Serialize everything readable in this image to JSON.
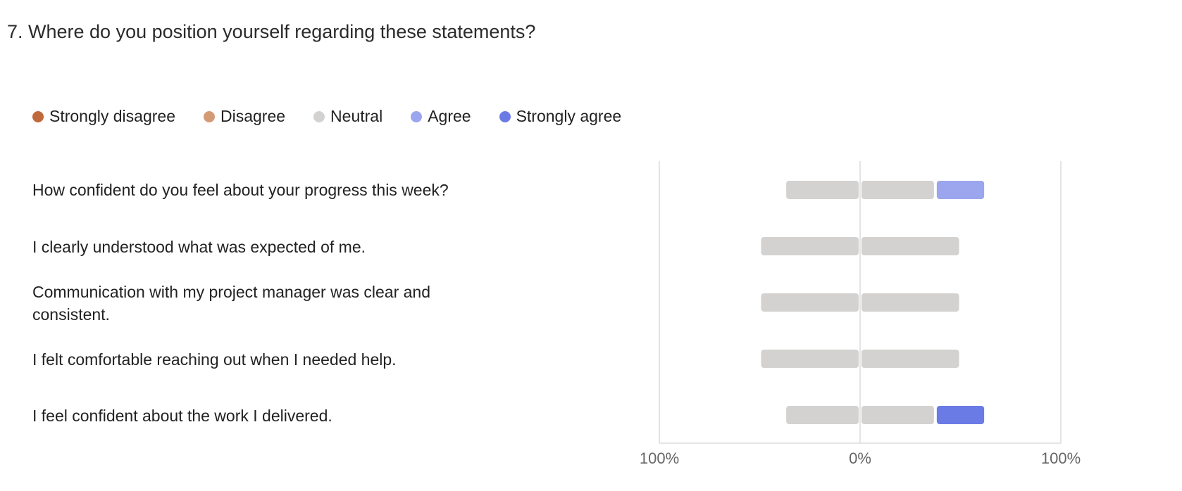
{
  "question": {
    "title": "7. Where do you position yourself regarding these statements?"
  },
  "chart_data": {
    "type": "bar",
    "subtype": "diverging-stacked",
    "legend": [
      {
        "label": "Strongly disagree",
        "color": "#c0693a"
      },
      {
        "label": "Disagree",
        "color": "#d49a74"
      },
      {
        "label": "Neutral",
        "color": "#d3d2d0"
      },
      {
        "label": "Agree",
        "color": "#9ba6ee"
      },
      {
        "label": "Strongly agree",
        "color": "#6b7be6"
      }
    ],
    "categories": [
      "How confident do you feel about your progress this week?",
      "I clearly understood what was expected of me.",
      "Communication with my project manager was clear and consistent.",
      "I felt comfortable reaching out when I needed help.",
      "I feel confident about the work I delivered."
    ],
    "series": [
      {
        "name": "Strongly disagree",
        "values": [
          0,
          0,
          0,
          0,
          0
        ]
      },
      {
        "name": "Disagree",
        "values": [
          0,
          0,
          0,
          0,
          0
        ]
      },
      {
        "name": "Neutral",
        "values": [
          75,
          100,
          100,
          100,
          75
        ]
      },
      {
        "name": "Agree",
        "values": [
          25,
          0,
          0,
          0,
          0
        ]
      },
      {
        "name": "Strongly agree",
        "values": [
          0,
          0,
          0,
          0,
          25
        ]
      }
    ],
    "x_ticks": [
      "100%",
      "0%",
      "100%"
    ],
    "xlim": [
      -100,
      100
    ]
  }
}
